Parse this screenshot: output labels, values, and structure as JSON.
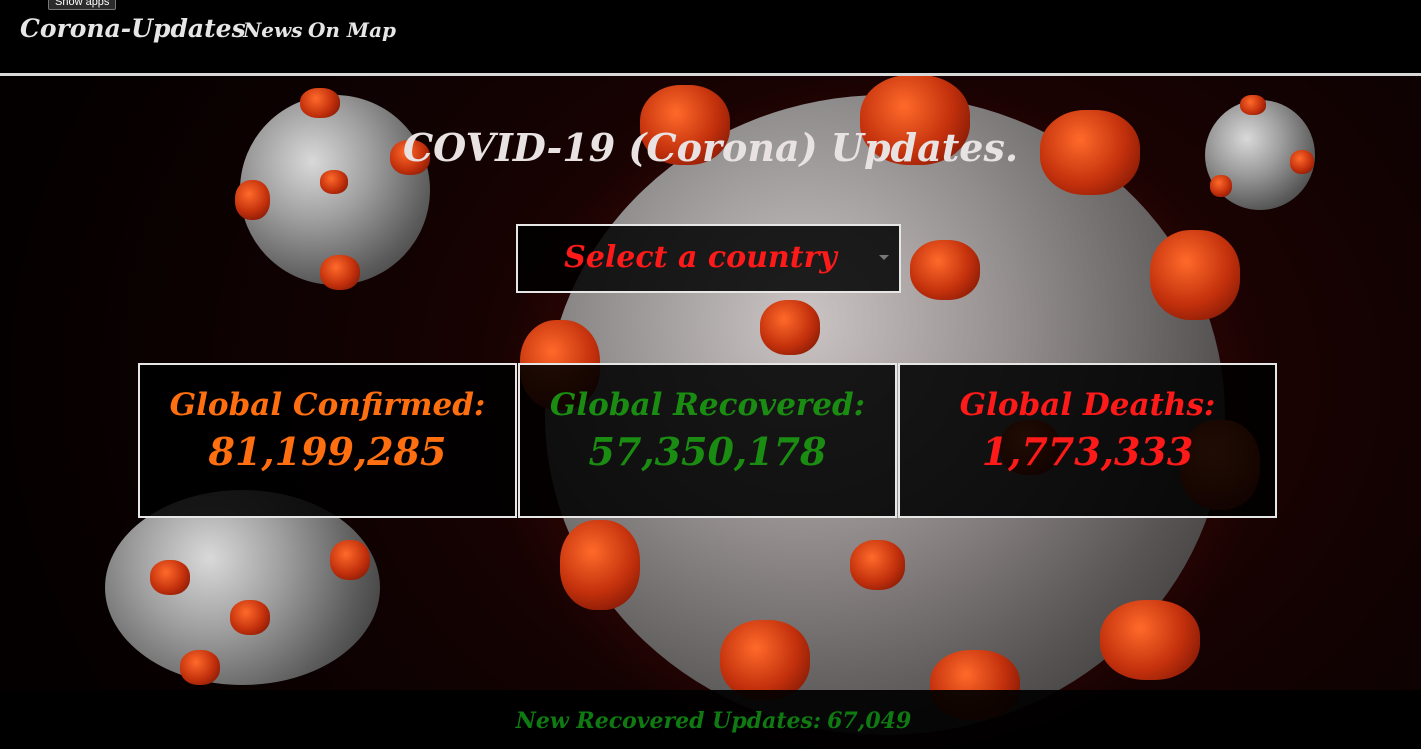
{
  "tooltip": "Show apps",
  "navbar": {
    "brand": "Corona-Updates",
    "links": [
      "News",
      "On Map"
    ]
  },
  "main": {
    "title": "COVID-19 (Corona) Updates.",
    "country_select": {
      "placeholder": "Select a country"
    },
    "stats": [
      {
        "label": "Global Confirmed:",
        "value": "81,199,285",
        "color": "#ff6f0f"
      },
      {
        "label": "Global Recovered:",
        "value": "57,350,178",
        "color": "#1a8c12"
      },
      {
        "label": "Global Deaths:",
        "value": "1,773,333",
        "color": "#ff1a1a"
      }
    ]
  },
  "footer": {
    "label": "New Recovered Updates:",
    "value": "67,049"
  },
  "colors": {
    "accent_red": "#ff1a1a",
    "accent_orange": "#ff6f0f",
    "accent_green": "#1a8c12",
    "navbar_bg": "#000000"
  }
}
